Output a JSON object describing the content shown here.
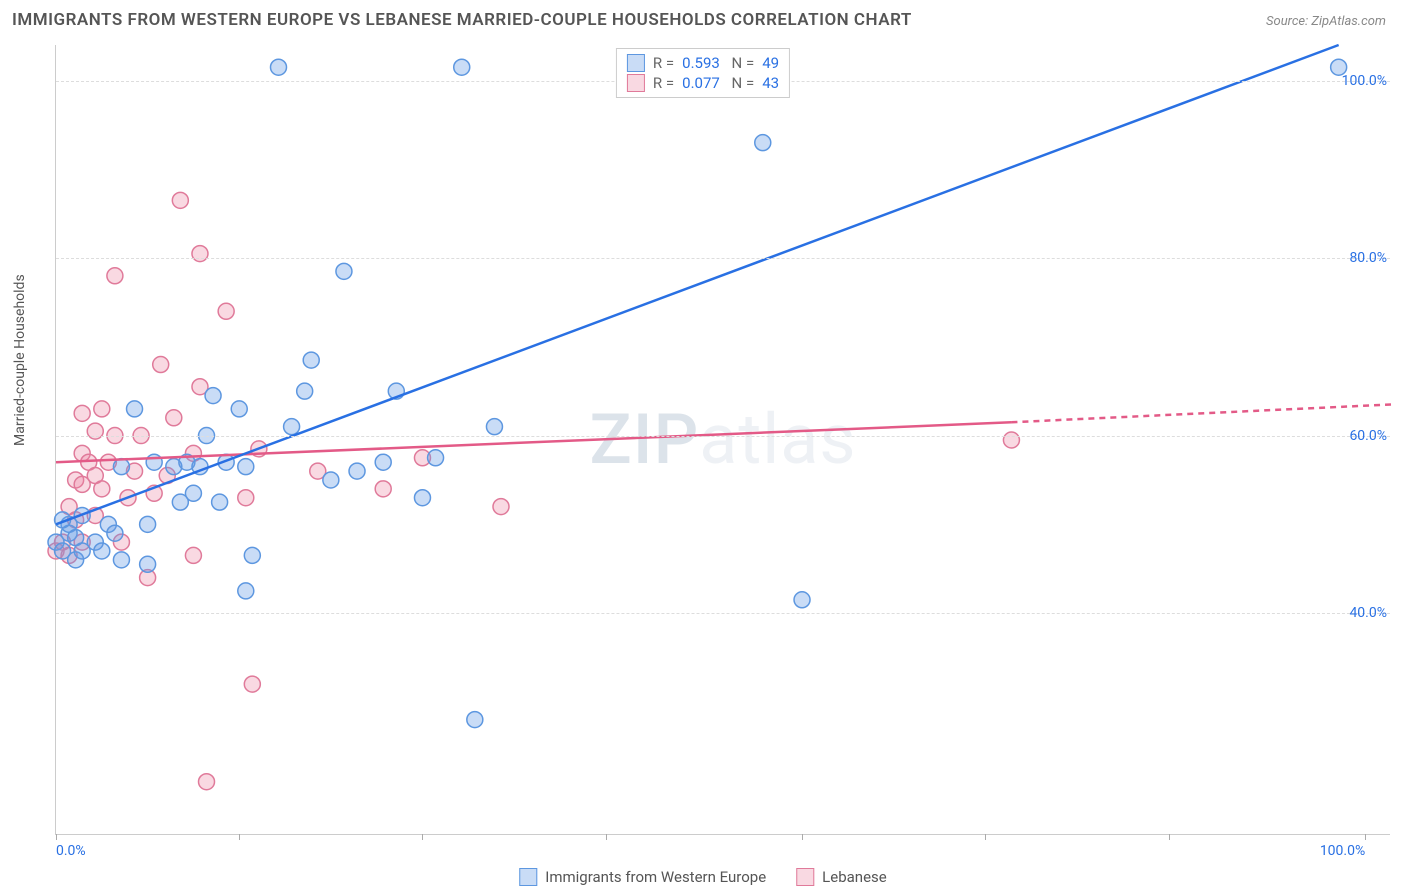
{
  "chart": {
    "type": "scatter",
    "title": "IMMIGRANTS FROM WESTERN EUROPE VS LEBANESE MARRIED-COUPLE HOUSEHOLDS CORRELATION CHART",
    "source_label": "Source: ZipAtlas.com",
    "watermark_bold": "ZIP",
    "watermark_light": "atlas",
    "ylabel": "Married-couple Households",
    "xlim": [
      0,
      102
    ],
    "ylim": [
      15,
      104
    ],
    "y_ticks": [
      40.0,
      60.0,
      80.0,
      100.0
    ],
    "y_tick_labels": [
      "40.0%",
      "60.0%",
      "80.0%",
      "100.0%"
    ],
    "x_tick_positions": [
      0,
      14,
      28,
      42,
      57,
      71,
      85,
      100
    ],
    "x_tick_labels_left": "0.0%",
    "x_tick_labels_right": "100.0%",
    "colors": {
      "series_a_fill": "rgba(100,155,230,0.35)",
      "series_a_stroke": "#5d97e0",
      "series_a_line": "#2970e3",
      "series_b_fill": "rgba(235,130,160,0.30)",
      "series_b_stroke": "#e07a9a",
      "series_b_line": "#e35a87",
      "axis_label_color": "#2970e3",
      "grid_color": "#dddddd",
      "background": "#ffffff"
    },
    "marker_radius": 8,
    "line_width": 2.5,
    "legend_stats": {
      "series_a": {
        "r": "0.593",
        "n": "49"
      },
      "series_b": {
        "r": "0.077",
        "n": "43"
      }
    },
    "bottom_legend": {
      "series_a_label": "Immigrants from Western Europe",
      "series_b_label": "Lebanese"
    },
    "regression_lines": {
      "series_a": {
        "x1": 0,
        "y1": 50,
        "x2": 98,
        "y2": 104
      },
      "series_b": {
        "x1": 0,
        "y1": 57,
        "x2": 73,
        "y2": 61.5,
        "dash_x2": 102,
        "dash_y2": 63.5
      }
    },
    "series_a_points": [
      [
        0,
        48
      ],
      [
        0.5,
        47
      ],
      [
        1,
        49
      ],
      [
        1,
        50
      ],
      [
        1.5,
        46
      ],
      [
        1.5,
        48.5
      ],
      [
        0.5,
        50.5
      ],
      [
        2,
        47
      ],
      [
        2,
        51
      ],
      [
        3,
        48
      ],
      [
        3.5,
        47
      ],
      [
        4,
        50
      ],
      [
        4.5,
        49
      ],
      [
        5,
        46
      ],
      [
        5,
        56.5
      ],
      [
        6,
        63
      ],
      [
        7,
        50
      ],
      [
        7.5,
        57
      ],
      [
        7,
        45.5
      ],
      [
        9,
        56.5
      ],
      [
        9.5,
        52.5
      ],
      [
        10,
        57
      ],
      [
        10.5,
        53.5
      ],
      [
        11,
        56.5
      ],
      [
        11.5,
        60
      ],
      [
        12,
        64.5
      ],
      [
        12.5,
        52.5
      ],
      [
        13,
        57
      ],
      [
        14,
        63
      ],
      [
        14.5,
        56.5
      ],
      [
        14.5,
        42.5
      ],
      [
        15,
        46.5
      ],
      [
        17,
        101.5
      ],
      [
        18,
        61
      ],
      [
        19,
        65
      ],
      [
        19.5,
        68.5
      ],
      [
        21,
        55
      ],
      [
        22,
        78.5
      ],
      [
        23,
        56
      ],
      [
        25,
        57
      ],
      [
        26,
        65
      ],
      [
        28,
        53
      ],
      [
        29,
        57.5
      ],
      [
        31,
        101.5
      ],
      [
        32,
        28
      ],
      [
        33.5,
        61
      ],
      [
        54,
        93
      ],
      [
        57,
        41.5
      ],
      [
        98,
        101.5
      ]
    ],
    "series_b_points": [
      [
        0,
        47
      ],
      [
        0.5,
        48
      ],
      [
        1,
        46.5
      ],
      [
        1,
        52
      ],
      [
        1.5,
        50.5
      ],
      [
        1.5,
        55
      ],
      [
        2,
        48
      ],
      [
        2,
        54.5
      ],
      [
        2,
        58
      ],
      [
        2,
        62.5
      ],
      [
        2.5,
        57
      ],
      [
        3,
        51
      ],
      [
        3,
        55.5
      ],
      [
        3,
        60.5
      ],
      [
        3.5,
        54
      ],
      [
        3.5,
        63
      ],
      [
        4,
        57
      ],
      [
        4.5,
        60
      ],
      [
        4.5,
        78
      ],
      [
        5,
        48
      ],
      [
        5.5,
        53
      ],
      [
        6,
        56
      ],
      [
        6.5,
        60
      ],
      [
        7,
        44
      ],
      [
        7.5,
        53.5
      ],
      [
        8,
        68
      ],
      [
        8.5,
        55.5
      ],
      [
        9,
        62
      ],
      [
        9.5,
        86.5
      ],
      [
        10.5,
        46.5
      ],
      [
        10.5,
        58
      ],
      [
        11,
        65.5
      ],
      [
        11,
        80.5
      ],
      [
        11.5,
        21
      ],
      [
        13,
        74
      ],
      [
        14.5,
        53
      ],
      [
        15,
        32
      ],
      [
        15.5,
        58.5
      ],
      [
        20,
        56
      ],
      [
        25,
        54
      ],
      [
        28,
        57.5
      ],
      [
        34,
        52
      ],
      [
        73,
        59.5
      ]
    ]
  }
}
